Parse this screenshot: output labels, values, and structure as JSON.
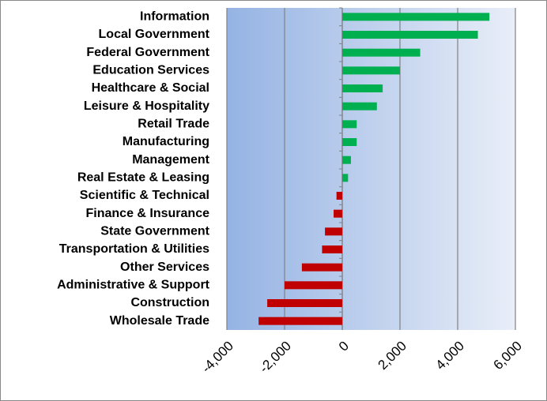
{
  "chart_data": {
    "type": "bar",
    "orientation": "horizontal",
    "categories": [
      "Information",
      "Local Government",
      "Federal Government",
      "Education Services",
      "Healthcare & Social",
      "Leisure & Hospitality",
      "Retail Trade",
      "Manufacturing",
      "Management",
      "Real Estate & Leasing",
      "Scientific & Technical",
      "Finance & Insurance",
      "State Government",
      "Transportation & Utilities",
      "Other Services",
      "Administrative & Support",
      "Construction",
      "Wholesale Trade"
    ],
    "values": [
      5100,
      4700,
      2700,
      2000,
      1400,
      1200,
      500,
      500,
      300,
      200,
      -200,
      -300,
      -600,
      -700,
      -1400,
      -2000,
      -2600,
      -2900
    ],
    "positive_color": "#00b050",
    "negative_color": "#c00000",
    "xlim": [
      -4000,
      6000
    ],
    "xticks": [
      {
        "value": -4000,
        "label": "-4,000"
      },
      {
        "value": -2000,
        "label": "-2,000"
      },
      0,
      {
        "value": 2000,
        "label": "2,000"
      },
      {
        "value": 4000,
        "label": "4,000"
      },
      {
        "value": 6000,
        "label": "6,000"
      }
    ],
    "grid": true
  }
}
